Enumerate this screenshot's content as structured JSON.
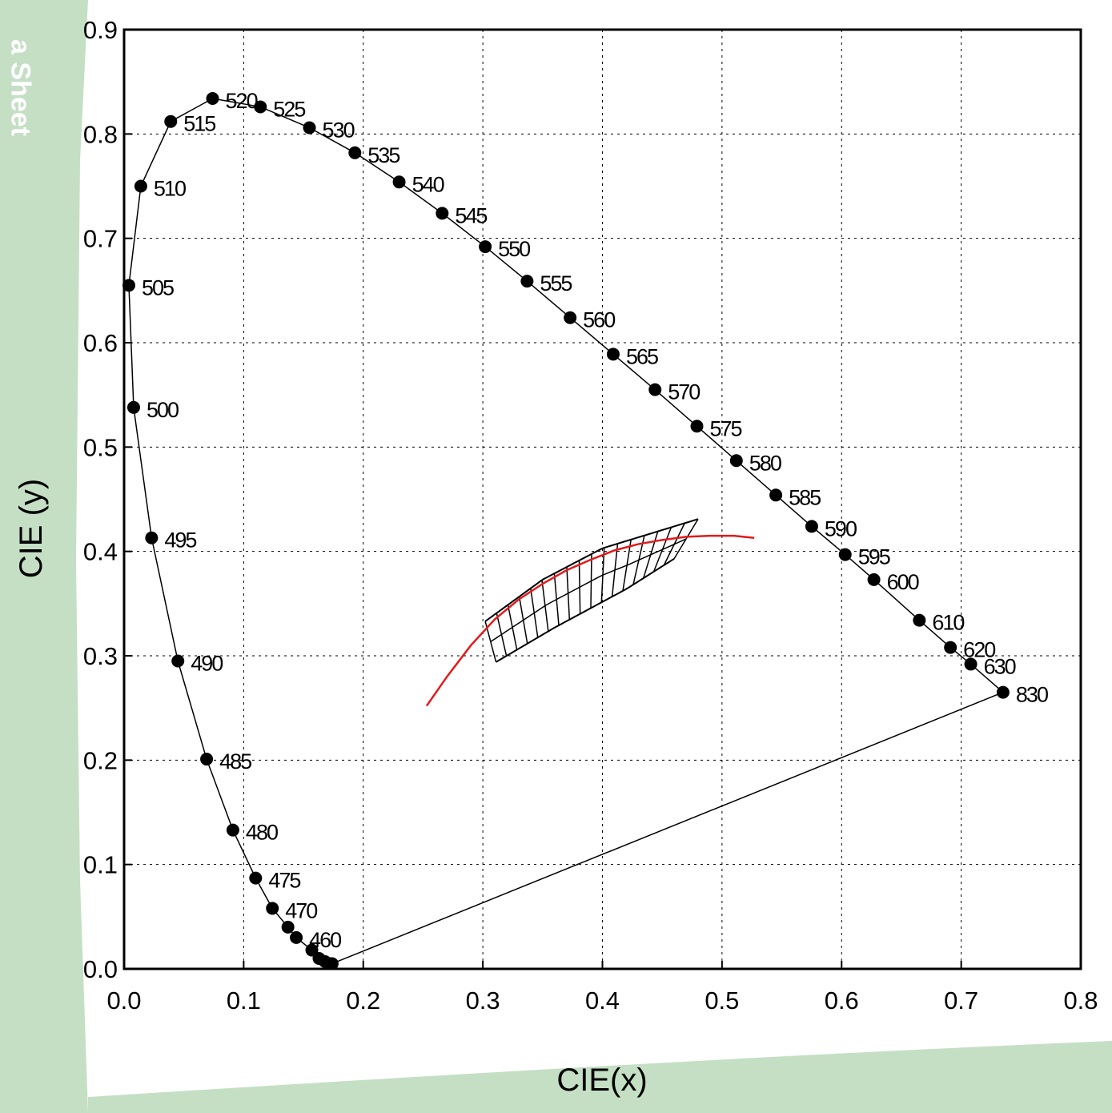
{
  "side_text": "a Sheet",
  "colors": {
    "background_band": "#c5dfc4",
    "locus": "#000000",
    "planckian": "#e31a1c",
    "bins": "#000000"
  },
  "chart_data": {
    "type": "scatter",
    "title": "",
    "xlabel": "CIE(x)",
    "ylabel": "CIE (y)",
    "xlim": [
      0.0,
      0.8
    ],
    "ylim": [
      0.0,
      0.9
    ],
    "xticks": [
      "0.0",
      "0.1",
      "0.2",
      "0.3",
      "0.4",
      "0.5",
      "0.6",
      "0.7",
      "0.8"
    ],
    "yticks": [
      "0.0",
      "0.1",
      "0.2",
      "0.3",
      "0.4",
      "0.5",
      "0.6",
      "0.7",
      "0.8",
      "0.9"
    ],
    "grid": true,
    "spectral_locus": [
      {
        "nm": "460",
        "x": 0.144,
        "y": 0.03,
        "label": "460"
      },
      {
        "nm": "465",
        "x": 0.137,
        "y": 0.04,
        "label": ""
      },
      {
        "nm": "470",
        "x": 0.124,
        "y": 0.058,
        "label": "470"
      },
      {
        "nm": "475",
        "x": 0.11,
        "y": 0.087,
        "label": "475"
      },
      {
        "nm": "480",
        "x": 0.091,
        "y": 0.133,
        "label": "480"
      },
      {
        "nm": "485",
        "x": 0.069,
        "y": 0.201,
        "label": "485"
      },
      {
        "nm": "490",
        "x": 0.045,
        "y": 0.295,
        "label": "490"
      },
      {
        "nm": "495",
        "x": 0.023,
        "y": 0.413,
        "label": "495"
      },
      {
        "nm": "500",
        "x": 0.008,
        "y": 0.538,
        "label": "500"
      },
      {
        "nm": "505",
        "x": 0.004,
        "y": 0.655,
        "label": "505"
      },
      {
        "nm": "510",
        "x": 0.014,
        "y": 0.75,
        "label": "510"
      },
      {
        "nm": "515",
        "x": 0.039,
        "y": 0.812,
        "label": "515"
      },
      {
        "nm": "520",
        "x": 0.074,
        "y": 0.834,
        "label": "520"
      },
      {
        "nm": "525",
        "x": 0.114,
        "y": 0.826,
        "label": "525"
      },
      {
        "nm": "530",
        "x": 0.155,
        "y": 0.806,
        "label": "530"
      },
      {
        "nm": "535",
        "x": 0.193,
        "y": 0.782,
        "label": "535"
      },
      {
        "nm": "540",
        "x": 0.23,
        "y": 0.754,
        "label": "540"
      },
      {
        "nm": "545",
        "x": 0.266,
        "y": 0.724,
        "label": "545"
      },
      {
        "nm": "550",
        "x": 0.302,
        "y": 0.692,
        "label": "550"
      },
      {
        "nm": "555",
        "x": 0.337,
        "y": 0.659,
        "label": "555"
      },
      {
        "nm": "560",
        "x": 0.373,
        "y": 0.624,
        "label": "560"
      },
      {
        "nm": "565",
        "x": 0.409,
        "y": 0.589,
        "label": "565"
      },
      {
        "nm": "570",
        "x": 0.444,
        "y": 0.555,
        "label": "570"
      },
      {
        "nm": "575",
        "x": 0.479,
        "y": 0.52,
        "label": "575"
      },
      {
        "nm": "580",
        "x": 0.512,
        "y": 0.487,
        "label": "580"
      },
      {
        "nm": "585",
        "x": 0.545,
        "y": 0.454,
        "label": "585"
      },
      {
        "nm": "590",
        "x": 0.575,
        "y": 0.424,
        "label": "590"
      },
      {
        "nm": "595",
        "x": 0.603,
        "y": 0.397,
        "label": "595"
      },
      {
        "nm": "600",
        "x": 0.627,
        "y": 0.373,
        "label": "600"
      },
      {
        "nm": "610",
        "x": 0.665,
        "y": 0.334,
        "label": "610"
      },
      {
        "nm": "620",
        "x": 0.691,
        "y": 0.308,
        "label": "620"
      },
      {
        "nm": "630",
        "x": 0.708,
        "y": 0.292,
        "label": "630"
      },
      {
        "nm": "830",
        "x": 0.735,
        "y": 0.265,
        "label": "830"
      }
    ],
    "blue_end_cluster": [
      {
        "x": 0.157,
        "y": 0.018
      },
      {
        "x": 0.163,
        "y": 0.01
      },
      {
        "x": 0.168,
        "y": 0.007
      },
      {
        "x": 0.172,
        "y": 0.005
      },
      {
        "x": 0.174,
        "y": 0.005
      }
    ],
    "planckian_locus": [
      [
        0.253,
        0.252
      ],
      [
        0.27,
        0.28
      ],
      [
        0.29,
        0.31
      ],
      [
        0.31,
        0.335
      ],
      [
        0.33,
        0.354
      ],
      [
        0.35,
        0.369
      ],
      [
        0.37,
        0.382
      ],
      [
        0.39,
        0.392
      ],
      [
        0.41,
        0.401
      ],
      [
        0.43,
        0.407
      ],
      [
        0.45,
        0.411
      ],
      [
        0.47,
        0.414
      ],
      [
        0.49,
        0.415
      ],
      [
        0.51,
        0.415
      ],
      [
        0.527,
        0.413
      ]
    ],
    "bin_grid": {
      "top_edge": [
        [
          0.302,
          0.333
        ],
        [
          0.35,
          0.373
        ],
        [
          0.4,
          0.403
        ],
        [
          0.48,
          0.431
        ]
      ],
      "bottom_edge": [
        [
          0.311,
          0.294
        ],
        [
          0.36,
          0.327
        ],
        [
          0.42,
          0.364
        ],
        [
          0.46,
          0.393
        ]
      ],
      "dividers": 17,
      "midline": true
    }
  }
}
